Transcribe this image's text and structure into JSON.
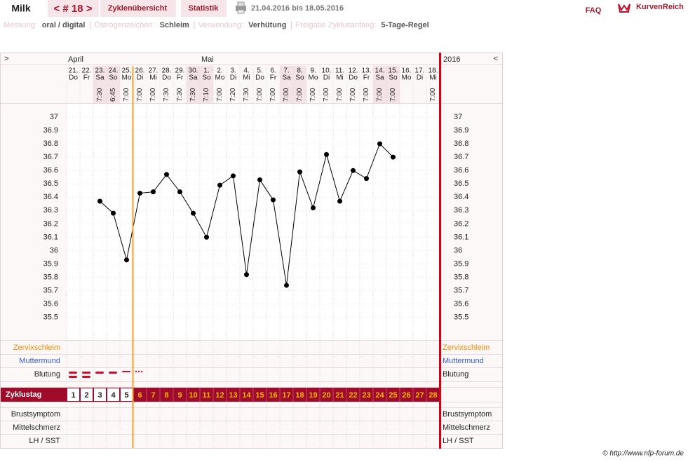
{
  "header": {
    "name": "Milk",
    "cycle": "< # 18 >",
    "tabs": [
      "Zyklenübersicht",
      "Statistik"
    ],
    "date_range": "21.04.2016 bis 18.05.2016",
    "faq": "FAQ",
    "logo": "KurvenReich"
  },
  "settings": [
    {
      "label": "Messung:",
      "value": "oral / digital"
    },
    {
      "label": "Östrogenzeichen:",
      "value": "Schleim"
    },
    {
      "label": "Verwendung:",
      "value": "Verhütung"
    },
    {
      "label": "Freigabe Zyklusanfang:",
      "value": "5-Tage-Regel"
    }
  ],
  "chart_data": {
    "type": "line",
    "nav": [
      ">",
      "<"
    ],
    "year": "2016",
    "months": [
      "April",
      null,
      null,
      null,
      null,
      null,
      null,
      null,
      null,
      null,
      "Mai",
      null,
      null,
      null,
      null,
      null,
      null,
      null,
      null,
      null,
      null,
      null,
      null,
      null,
      null,
      null,
      null,
      null
    ],
    "days": [
      "21.",
      "22.",
      "23.",
      "24.",
      "25.",
      "26.",
      "27.",
      "28.",
      "29.",
      "30.",
      "1.",
      "2.",
      "3.",
      "4.",
      "5.",
      "6.",
      "7.",
      "8.",
      "9.",
      "10.",
      "11.",
      "12.",
      "13.",
      "14.",
      "15.",
      "16.",
      "17.",
      "18."
    ],
    "weekdays": [
      "Do",
      "Fr",
      "Sa",
      "So",
      "Mo",
      "Di",
      "Mi",
      "Do",
      "Fr",
      "Sa",
      "So",
      "Mo",
      "Di",
      "Mi",
      "Do",
      "Fr",
      "Sa",
      "So",
      "Mo",
      "Di",
      "Mi",
      "Do",
      "Fr",
      "Sa",
      "So",
      "Mo",
      "Di",
      "Mi"
    ],
    "times": [
      null,
      null,
      "7:30",
      "6:45",
      "7:00",
      "7:00",
      "7:00",
      "7:30",
      "7:30",
      "7:30",
      "7:10",
      "7:00",
      "7:20",
      "7:30",
      "7:00",
      "7:00",
      "7:00",
      "7:00",
      "7:00",
      "7:00",
      "7:00",
      "7:00",
      "7:00",
      "7:00",
      "7:00",
      null,
      null,
      "7:00"
    ],
    "cycle_days": [
      1,
      2,
      3,
      4,
      5,
      6,
      7,
      8,
      9,
      10,
      11,
      12,
      13,
      14,
      15,
      16,
      17,
      18,
      19,
      20,
      21,
      22,
      23,
      24,
      25,
      26,
      27,
      28
    ],
    "values": [
      null,
      null,
      36.37,
      36.28,
      35.93,
      36.43,
      36.44,
      36.57,
      36.44,
      36.28,
      36.1,
      36.49,
      36.56,
      35.82,
      36.53,
      36.38,
      35.74,
      36.59,
      36.32,
      36.72,
      36.37,
      36.6,
      36.54,
      36.8,
      36.7,
      null,
      null,
      null
    ],
    "color": "#000000",
    "ylim": [
      35.33,
      37.1
    ],
    "yticks": [
      37,
      36.9,
      36.8,
      36.7,
      36.6,
      36.5,
      36.4,
      36.3,
      36.2,
      36.1,
      36,
      35.9,
      35.8,
      35.7,
      35.6,
      35.5
    ],
    "grid": true,
    "rows": [
      "Zervixschleim",
      "Muttermund",
      "Blutung",
      "Zyklustag",
      "Brustsymptom",
      "Mittelschmerz",
      "LH / SST"
    ]
  },
  "footer": "© http://www.nfp-forum.de"
}
